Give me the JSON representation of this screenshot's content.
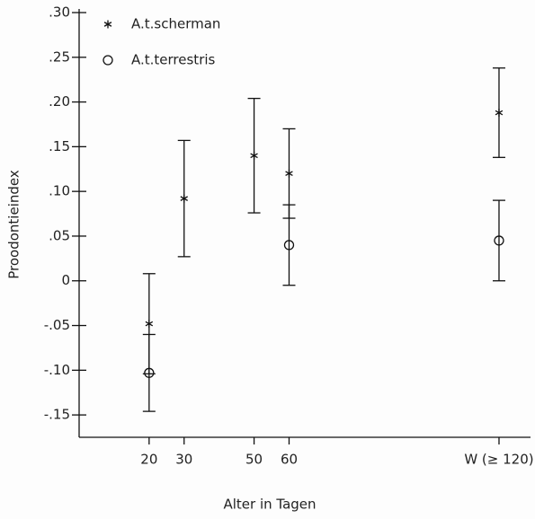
{
  "chart_data": {
    "type": "scatter",
    "x_label": "Alter in Tagen",
    "y_label": "Proodontieindex",
    "x": [
      20,
      30,
      50,
      60,
      120
    ],
    "series": [
      {
        "name": "A.t.scherman",
        "color": "#000000",
        "marker": "asterisk",
        "values": [
          -0.048,
          0.092,
          0.14,
          0.12,
          0.188
        ],
        "errors": [
          0.056,
          0.065,
          0.064,
          0.05,
          0.05
        ]
      },
      {
        "name": "A.t.terrestris",
        "color": "#000000",
        "marker": "circle",
        "values": [
          -0.103,
          null,
          null,
          0.04,
          0.045
        ],
        "errors": [
          0.043,
          null,
          null,
          0.045,
          0.045
        ]
      }
    ],
    "xlim": [
      0,
      129
    ],
    "xticks": [
      20,
      30,
      50,
      60,
      {
        "value": 120,
        "label": "W (≥ 120)"
      }
    ],
    "ylim": [
      -0.175,
      0.3
    ],
    "yticks": [
      {
        "value": 0.3,
        "label": ".30"
      },
      {
        "value": 0.25,
        "label": ".25"
      },
      {
        "value": 0.2,
        "label": ".20"
      },
      {
        "value": 0.15,
        "label": ".15"
      },
      {
        "value": 0.1,
        "label": ".10"
      },
      {
        "value": 0.05,
        "label": ".05"
      },
      0,
      {
        "value": -0.05,
        "label": "-.05"
      },
      {
        "value": -0.1,
        "label": "-.10"
      },
      {
        "value": -0.15,
        "label": "-.15"
      }
    ],
    "legend": "top-left",
    "grid": false
  }
}
